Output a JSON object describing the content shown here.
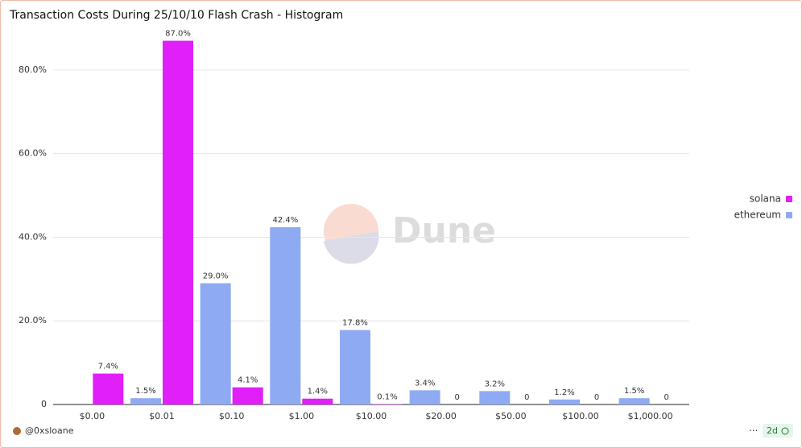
{
  "chart_data": {
    "type": "bar",
    "title": "Transaction Costs During 25/10/10 Flash Crash - Histogram",
    "categories": [
      "$0.00",
      "$0.01",
      "$0.10",
      "$1.00",
      "$10.00",
      "$20.00",
      "$50.00",
      "$100.00",
      "$1,000.00"
    ],
    "series": [
      {
        "name": "solana",
        "color": "#e11ff8",
        "values": [
          7.4,
          87.0,
          4.1,
          1.4,
          0.1,
          0,
          0,
          0,
          0
        ],
        "value_labels": [
          "7.4%",
          "87.0%",
          "4.1%",
          "1.4%",
          "0.1%",
          "0",
          "0",
          "0",
          "0"
        ]
      },
      {
        "name": "ethereum",
        "color": "#8eaaf2",
        "values": [
          null,
          1.5,
          29.0,
          42.4,
          17.8,
          3.4,
          3.2,
          1.2,
          1.5
        ],
        "value_labels": [
          null,
          "1.5%",
          "29.0%",
          "42.4%",
          "17.8%",
          "3.4%",
          "3.2%",
          "1.2%",
          "1.5%"
        ]
      }
    ],
    "ylim": [
      0,
      90
    ],
    "yticks": [
      0,
      {
        "value": 20,
        "label": "20.0%"
      },
      {
        "value": 40,
        "label": "40.0%"
      },
      {
        "value": 60,
        "label": "60.0%"
      },
      {
        "value": 80,
        "label": "80.0%"
      }
    ],
    "grid": true,
    "legend": "right"
  },
  "watermark": "Dune",
  "author": "@0xsloane",
  "age": "2d"
}
